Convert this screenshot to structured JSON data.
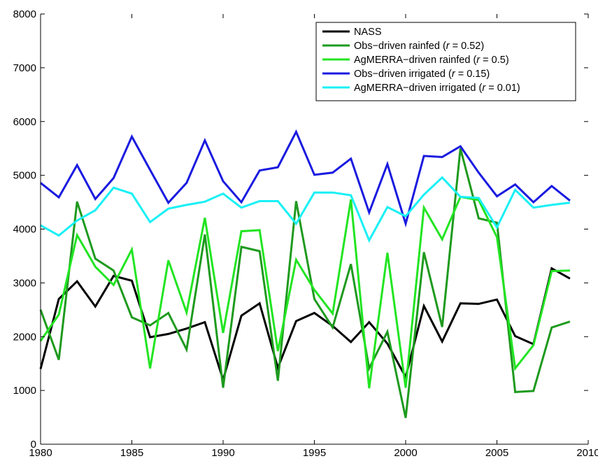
{
  "chart_data": {
    "type": "line",
    "title": "",
    "xlabel": "",
    "ylabel": "",
    "xlim": [
      1980,
      2010
    ],
    "ylim": [
      0,
      8000
    ],
    "x_ticks": [
      1980,
      1985,
      1990,
      1995,
      2000,
      2005,
      2010
    ],
    "y_ticks": [
      0,
      1000,
      2000,
      3000,
      4000,
      5000,
      6000,
      7000,
      8000
    ],
    "grid": false,
    "legend_position": "top-right",
    "x": [
      1980,
      1981,
      1982,
      1983,
      1984,
      1985,
      1986,
      1987,
      1988,
      1989,
      1990,
      1991,
      1992,
      1993,
      1994,
      1995,
      1996,
      1997,
      1998,
      1999,
      2000,
      2001,
      2002,
      2003,
      2004,
      2005,
      2006,
      2007,
      2008,
      2009
    ],
    "series": [
      {
        "legend_label": "NASS",
        "color": "#000000",
        "values": [
          1400,
          2700,
          3030,
          2560,
          3130,
          3040,
          1990,
          2050,
          2150,
          2270,
          1200,
          2390,
          2620,
          1420,
          2290,
          2440,
          2200,
          1900,
          2270,
          1870,
          1250,
          2570,
          1910,
          2620,
          2610,
          2690,
          2010,
          1860,
          3270,
          3080
        ]
      },
      {
        "legend_label": "Obs−driven rainfed (r = 0.52)",
        "color": "#1e9a1e",
        "values": [
          2500,
          1570,
          4510,
          3450,
          3230,
          2360,
          2210,
          2440,
          1760,
          3900,
          1050,
          3670,
          3590,
          1180,
          4520,
          2700,
          2170,
          3350,
          1410,
          2090,
          490,
          3570,
          2180,
          5500,
          4200,
          4120,
          970,
          990,
          2170,
          2280
        ]
      },
      {
        "legend_label": "AgMERRA−driven rainfed (r = 0.5)",
        "color": "#22e522",
        "values": [
          1920,
          2410,
          3890,
          3300,
          2960,
          3620,
          1410,
          3420,
          2450,
          4210,
          2070,
          3960,
          3980,
          1730,
          3430,
          2870,
          2430,
          4550,
          1040,
          3560,
          1050,
          4400,
          3810,
          4600,
          4540,
          3850,
          1410,
          1840,
          3220,
          3230
        ]
      },
      {
        "legend_label": "Obs−driven irrigated (r = 0.15)",
        "color": "#1a1ae0",
        "values": [
          4860,
          4590,
          5190,
          4560,
          4950,
          5720,
          5100,
          4490,
          4860,
          5650,
          4890,
          4500,
          5090,
          5150,
          5810,
          5010,
          5050,
          5310,
          4310,
          5210,
          4100,
          5360,
          5340,
          5540,
          5050,
          4610,
          4830,
          4500,
          4800,
          4530
        ]
      },
      {
        "legend_label": "AgMERRA−driven irrigated (r = 0.01)",
        "color": "#19f0f5",
        "values": [
          4070,
          3880,
          4160,
          4350,
          4770,
          4660,
          4130,
          4380,
          4450,
          4510,
          4660,
          4400,
          4520,
          4520,
          4100,
          4680,
          4680,
          4630,
          3790,
          4410,
          4240,
          4640,
          4960,
          4600,
          4580,
          4030,
          4730,
          4400,
          4450,
          4490
        ]
      }
    ]
  }
}
